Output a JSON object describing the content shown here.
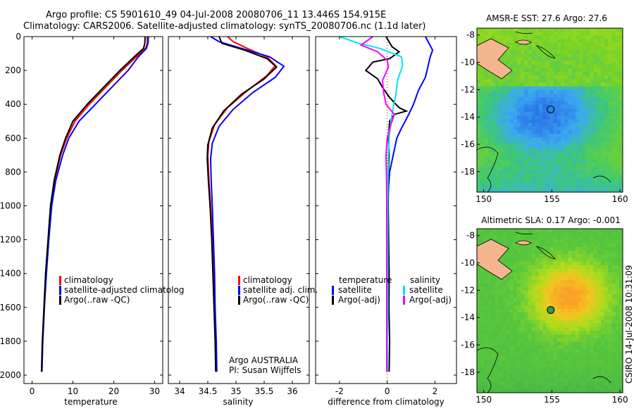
{
  "title": {
    "line1": "Argo profile: CS 5901610_49 04-Jul-2008 20080706_11 13.446S 154.915E",
    "line2": "Climatology: CARS2006. Satellite-adjusted climatology: synTS_20080706.nc (1.1d later)"
  },
  "side_label": "CSIRO 14-Jul-2008 10:31:09",
  "colors": {
    "climatology": "#ff0000",
    "satellite": "#0000ff",
    "argo": "#000000",
    "sal_satellite": "#00e5ee",
    "sal_argo": "#ff00ff"
  },
  "panels": {
    "temperature": {
      "xlabel": "temperature",
      "legend": [
        "climatology",
        "satellite-adjusted climatolog",
        "Argo(..raw -QC)"
      ]
    },
    "salinity": {
      "xlabel": "salinity",
      "legend": [
        "climatology",
        "satellite adj. clim.",
        "Argo(..raw -QC)"
      ],
      "note1": "Argo AUSTRALIA",
      "note2": "PI: Susan Wijffels"
    },
    "difference": {
      "xlabel": "difference from climatology",
      "legend_head_left": "temperature",
      "legend_head_right": "salinity",
      "legend_left": [
        "satellite",
        "Argo(-adj)"
      ],
      "legend_right": [
        "satellite",
        "Argo(-adj)"
      ]
    },
    "sst_map": {
      "title": "AMSR-E SST: 27.6 Argo: 27.6"
    },
    "sla_map": {
      "title": "Altimetric SLA: 0.17 Argo: -0.001"
    }
  },
  "chart_data": [
    {
      "type": "line",
      "name": "temperature",
      "xlim": [
        -2,
        32
      ],
      "ylim": [
        2050,
        0
      ],
      "xticks": [
        0,
        10,
        20,
        30
      ],
      "yticks": [
        0,
        200,
        400,
        600,
        800,
        1000,
        1200,
        1400,
        1600,
        1800,
        2000
      ],
      "series": [
        {
          "name": "climatology",
          "color": "#ff0000",
          "points": [
            [
              28.2,
              0
            ],
            [
              28.2,
              40
            ],
            [
              27.8,
              70
            ],
            [
              25.5,
              120
            ],
            [
              22,
              200
            ],
            [
              18,
              300
            ],
            [
              14,
              400
            ],
            [
              10.5,
              500
            ],
            [
              8.5,
              600
            ],
            [
              7,
              700
            ],
            [
              5.5,
              850
            ],
            [
              4.6,
              1000
            ],
            [
              4,
              1200
            ],
            [
              3.4,
              1400
            ],
            [
              3,
              1600
            ],
            [
              2.6,
              1800
            ],
            [
              2.4,
              1980
            ]
          ]
        },
        {
          "name": "satellite-adjusted climatology",
          "color": "#0000ff",
          "points": [
            [
              28.5,
              0
            ],
            [
              28.4,
              40
            ],
            [
              28,
              70
            ],
            [
              26,
              120
            ],
            [
              23.5,
              200
            ],
            [
              19.5,
              300
            ],
            [
              15.5,
              400
            ],
            [
              11.5,
              500
            ],
            [
              9,
              600
            ],
            [
              7.5,
              700
            ],
            [
              5.8,
              850
            ],
            [
              4.8,
              1000
            ],
            [
              4.1,
              1200
            ],
            [
              3.5,
              1400
            ],
            [
              3,
              1600
            ],
            [
              2.6,
              1800
            ],
            [
              2.4,
              1980
            ]
          ]
        },
        {
          "name": "Argo(..raw -QC)",
          "color": "#000000",
          "points": [
            [
              27.7,
              0
            ],
            [
              27.6,
              40
            ],
            [
              27.3,
              70
            ],
            [
              25,
              120
            ],
            [
              21.5,
              200
            ],
            [
              17.5,
              300
            ],
            [
              13.5,
              400
            ],
            [
              10,
              500
            ],
            [
              8.2,
              600
            ],
            [
              6.8,
              700
            ],
            [
              5.4,
              850
            ],
            [
              4.5,
              1000
            ],
            [
              3.9,
              1200
            ],
            [
              3.3,
              1400
            ],
            [
              2.9,
              1600
            ],
            [
              2.5,
              1800
            ],
            [
              2.3,
              1980
            ]
          ]
        }
      ]
    },
    {
      "type": "line",
      "name": "salinity",
      "xlim": [
        33.8,
        36.3
      ],
      "ylim": [
        2050,
        0
      ],
      "xticks": [
        34,
        34.5,
        35,
        35.5,
        36
      ],
      "series": [
        {
          "name": "climatology",
          "color": "#ff0000",
          "points": [
            [
              34.85,
              0
            ],
            [
              34.95,
              30
            ],
            [
              35.2,
              70
            ],
            [
              35.55,
              120
            ],
            [
              35.7,
              170
            ],
            [
              35.55,
              230
            ],
            [
              35.2,
              320
            ],
            [
              34.85,
              420
            ],
            [
              34.62,
              520
            ],
            [
              34.52,
              620
            ],
            [
              34.5,
              700
            ],
            [
              34.52,
              850
            ],
            [
              34.55,
              1000
            ],
            [
              34.58,
              1200
            ],
            [
              34.6,
              1400
            ],
            [
              34.62,
              1600
            ],
            [
              34.64,
              1800
            ],
            [
              34.65,
              1980
            ]
          ]
        },
        {
          "name": "satellite adj. clim.",
          "color": "#0000ff",
          "points": [
            [
              34.55,
              0
            ],
            [
              34.7,
              30
            ],
            [
              35.1,
              70
            ],
            [
              35.6,
              120
            ],
            [
              35.85,
              175
            ],
            [
              35.7,
              240
            ],
            [
              35.3,
              330
            ],
            [
              34.95,
              430
            ],
            [
              34.7,
              530
            ],
            [
              34.58,
              630
            ],
            [
              34.55,
              720
            ],
            [
              34.56,
              850
            ],
            [
              34.58,
              1000
            ],
            [
              34.6,
              1200
            ],
            [
              34.62,
              1400
            ],
            [
              34.63,
              1600
            ],
            [
              34.65,
              1800
            ],
            [
              34.66,
              1980
            ]
          ]
        },
        {
          "name": "Argo(..raw -QC)",
          "color": "#000000",
          "points": [
            [
              34.7,
              0
            ],
            [
              34.75,
              40
            ],
            [
              35.15,
              80
            ],
            [
              35.55,
              130
            ],
            [
              35.72,
              180
            ],
            [
              35.5,
              250
            ],
            [
              35.1,
              340
            ],
            [
              34.78,
              440
            ],
            [
              34.58,
              540
            ],
            [
              34.5,
              640
            ],
            [
              34.49,
              720
            ],
            [
              34.51,
              850
            ],
            [
              34.54,
              1000
            ],
            [
              34.57,
              1200
            ],
            [
              34.59,
              1400
            ],
            [
              34.61,
              1600
            ],
            [
              34.63,
              1800
            ],
            [
              34.64,
              1980
            ]
          ]
        }
      ]
    },
    {
      "type": "line",
      "name": "difference",
      "xlim": [
        -3,
        2.9
      ],
      "ylim": [
        2050,
        0
      ],
      "xticks": [
        -2,
        0,
        2
      ],
      "series": [
        {
          "name": "temperature satellite",
          "color": "#0000ff",
          "points": [
            [
              1.6,
              0
            ],
            [
              1.9,
              80
            ],
            [
              1.8,
              120
            ],
            [
              1.7,
              180
            ],
            [
              1.6,
              240
            ],
            [
              1.3,
              320
            ],
            [
              1.1,
              400
            ],
            [
              0.9,
              460
            ],
            [
              0.6,
              540
            ],
            [
              0.4,
              600
            ],
            [
              0.25,
              700
            ],
            [
              0.1,
              800
            ],
            [
              0.05,
              900
            ],
            [
              0.02,
              1000
            ],
            [
              0.01,
              1200
            ],
            [
              0,
              1400
            ],
            [
              0,
              1600
            ],
            [
              -0.01,
              1800
            ],
            [
              -0.01,
              1980
            ]
          ]
        },
        {
          "name": "temperature Argo(-adj)",
          "color": "#000000",
          "points": [
            [
              -0.05,
              0
            ],
            [
              0.2,
              60
            ],
            [
              0.5,
              90
            ],
            [
              0.1,
              130
            ],
            [
              -0.6,
              150
            ],
            [
              -0.9,
              200
            ],
            [
              -0.4,
              250
            ],
            [
              -0.2,
              300
            ],
            [
              0.1,
              360
            ],
            [
              0.5,
              420
            ],
            [
              0.8,
              440
            ],
            [
              0.3,
              460
            ],
            [
              0.1,
              500
            ],
            [
              0.05,
              600
            ],
            [
              0.08,
              700
            ],
            [
              0.05,
              800
            ],
            [
              0.04,
              1000
            ],
            [
              0.06,
              1200
            ],
            [
              0.08,
              1400
            ],
            [
              0.07,
              1600
            ],
            [
              0.1,
              1800
            ],
            [
              0.08,
              1980
            ]
          ]
        },
        {
          "name": "salinity satellite",
          "color": "#00e5ee",
          "points": [
            [
              -2,
              0
            ],
            [
              -1.2,
              40
            ],
            [
              -0.3,
              70
            ],
            [
              0.6,
              120
            ],
            [
              0.65,
              170
            ],
            [
              0.45,
              250
            ],
            [
              0.35,
              350
            ],
            [
              0.25,
              420
            ],
            [
              0.15,
              500
            ],
            [
              0.08,
              600
            ],
            [
              0.05,
              700
            ],
            [
              0.03,
              850
            ],
            [
              0.02,
              1000
            ],
            [
              0.02,
              1300
            ],
            [
              0.02,
              1600
            ],
            [
              0.01,
              1800
            ],
            [
              0.01,
              1980
            ]
          ]
        },
        {
          "name": "salinity Argo(-adj)",
          "color": "#ff00ff",
          "points": [
            [
              -0.6,
              0
            ],
            [
              -1.1,
              50
            ],
            [
              -0.4,
              90
            ],
            [
              0,
              140
            ],
            [
              0.05,
              180
            ],
            [
              -0.2,
              260
            ],
            [
              -0.15,
              330
            ],
            [
              -0.05,
              400
            ],
            [
              0.3,
              460
            ],
            [
              0.15,
              520
            ],
            [
              0,
              600
            ],
            [
              -0.05,
              700
            ],
            [
              -0.03,
              850
            ],
            [
              -0.02,
              1000
            ],
            [
              -0.02,
              1300
            ],
            [
              -0.02,
              1600
            ],
            [
              -0.02,
              1800
            ],
            [
              -0.02,
              1980
            ]
          ]
        }
      ]
    },
    {
      "type": "heatmap",
      "name": "AMSR-E SST map",
      "xlim": [
        149.5,
        160.2
      ],
      "ylim": [
        -19.5,
        -7.5
      ],
      "xticks": [
        150,
        155,
        160
      ],
      "yticks": [
        -8,
        -10,
        -12,
        -14,
        -16,
        -18
      ]
    },
    {
      "type": "heatmap",
      "name": "Altimetric SLA map",
      "xlim": [
        149.5,
        160.2
      ],
      "ylim": [
        -19.5,
        -7.5
      ],
      "xticks": [
        150,
        155,
        160
      ],
      "yticks": [
        -8,
        -10,
        -12,
        -14,
        -16,
        -18
      ]
    }
  ]
}
